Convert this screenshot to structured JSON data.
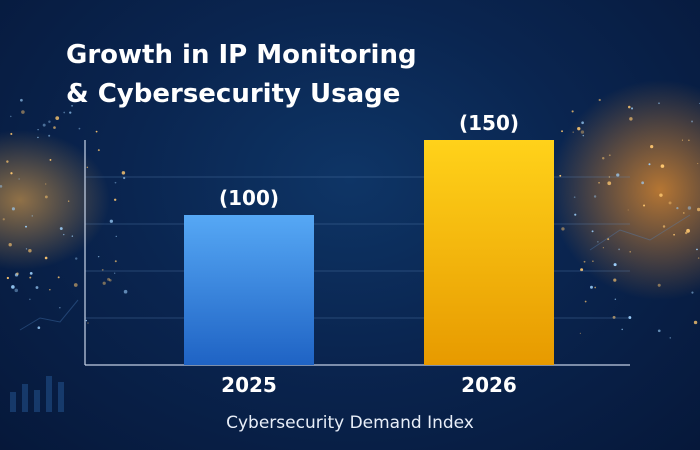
{
  "chart_data": {
    "type": "bar",
    "title": "Growth in IP Monitoring & Cybersecurity Usage",
    "title_lines": [
      "Growth in IP Monitoring",
      "& Cybersecurity Usage"
    ],
    "categories": [
      "2025",
      "2026"
    ],
    "values": [
      100,
      150
    ],
    "data_labels": [
      "(100)",
      "(150)"
    ],
    "xlabel": "Cybersecurity Demand Index",
    "ylabel": "",
    "ylim": [
      0,
      160
    ],
    "grid": true,
    "legend": "none",
    "colors": {
      "bar_2025": "#3a8fe6",
      "bar_2026": "#f2b705",
      "background": "#0a2550",
      "text": "#ffffff"
    }
  }
}
